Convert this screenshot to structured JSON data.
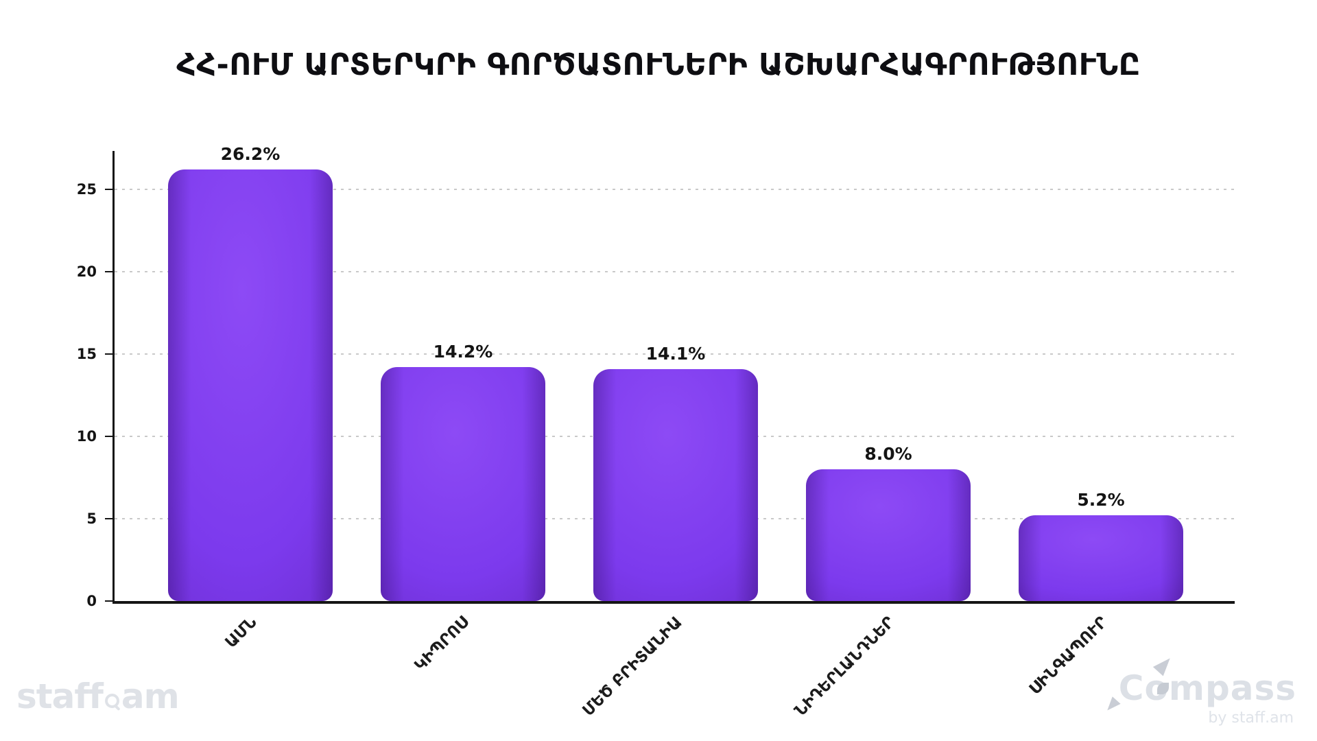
{
  "chart_data": {
    "type": "bar",
    "title": "ՀՀ-ՈՒՄ ԱՐՏԵՐԿՐԻ ԳՈՐԾԱՏՈՒՆԵՐԻ ԱՇԽԱՐՀԱԳՐՈՒԹՅՈՒՆԸ",
    "categories": [
      "ԱՄՆ",
      "ԿԻՊՐՈՍ",
      "ՄԵԾ ԲՐԻՏԱՆԻԱ",
      "ՆԻԴԵՐԼԱՆԴՆԵՐ",
      "ՍԻՆԳԱՊՈՒՐ"
    ],
    "values": [
      26.2,
      14.2,
      14.1,
      8.0,
      5.2
    ],
    "value_labels": [
      "26.2%",
      "14.2%",
      "14.1%",
      "8.0%",
      "5.2%"
    ],
    "xlabel": "",
    "ylabel": "",
    "ylim": [
      0,
      27.3
    ],
    "yticks": [
      0,
      5,
      10,
      15,
      20,
      25
    ],
    "grid": "horizontal-dashed",
    "legend_position": "none",
    "bar_color": "#7c3aed",
    "bar_gradient_highlight": "#8d4af5",
    "bar_gradient_edge": "#6226bb",
    "axis_color": "#151515",
    "gridline_color": "#c9c9c9",
    "label_color": "#141414",
    "xtick_rotation_deg": 45
  },
  "footer": {
    "left_logo_part1": "staff",
    "left_logo_part2": "am",
    "right_logo_text": "Compass",
    "right_logo_subtext": "by staff.am",
    "logo_color": "#dfe2e7"
  }
}
